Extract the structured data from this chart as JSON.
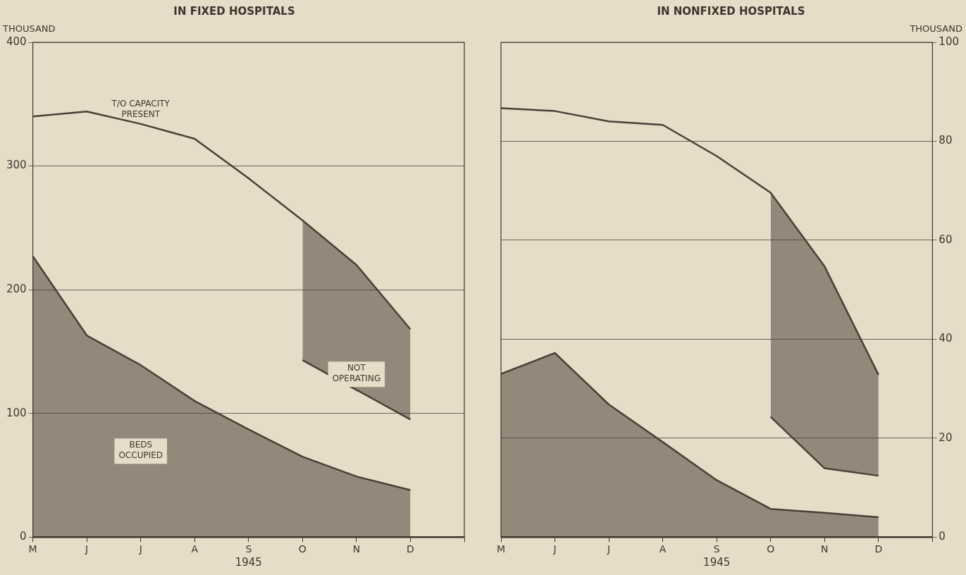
{
  "chart_data": [
    {
      "type": "area",
      "title": "IN FIXED HOSPITALS",
      "xlabel": "1945",
      "ylabel": "THOUSAND",
      "categories": [
        "M",
        "J",
        "J",
        "A",
        "S",
        "O",
        "N",
        "D",
        null
      ],
      "ylim": [
        0,
        400
      ],
      "yticks": [
        0,
        100,
        200,
        300,
        400
      ],
      "grid": "y",
      "legend": false,
      "marker": "none",
      "series": [
        {
          "name": "T/O CAPACITY PRESENT",
          "type": "line",
          "color": "#4a4038",
          "values": [
            340,
            344,
            334,
            322,
            290,
            256,
            220,
            168,
            null
          ]
        },
        {
          "name": "BEDS OCCUPIED",
          "color": "#4a4038",
          "values": [
            227,
            163,
            139,
            110,
            87,
            65,
            49,
            38,
            null
          ]
        },
        {
          "name": "NOT OPERATING",
          "type": "line",
          "color": "#4a4038",
          "values": [
            null,
            null,
            null,
            null,
            null,
            143,
            119,
            95,
            null
          ],
          "lower": [
            null,
            null,
            null,
            null,
            null,
            143,
            119,
            95,
            null
          ],
          "upper": [
            null,
            null,
            null,
            null,
            null,
            256,
            220,
            168,
            null
          ]
        }
      ]
    },
    {
      "type": "area",
      "title": "IN NONFIXED HOSPITALS",
      "xlabel": "1945",
      "y2label": "THOUSAND",
      "categories": [
        "M",
        "J",
        "J",
        "A",
        "S",
        "O",
        "N",
        "D",
        null
      ],
      "y2lim": [
        0,
        100
      ],
      "y2ticks": [
        0,
        20,
        40,
        60,
        80,
        100
      ],
      "grid": "y",
      "legend": false,
      "marker": "none",
      "series": [
        {
          "type": "line",
          "axis": "y2",
          "color": "#4a4038",
          "values": [
            86.7,
            86.1,
            84,
            83.3,
            77,
            69.6,
            54.7,
            32.8,
            null
          ]
        },
        {
          "axis": "y2",
          "color": "#4a4038",
          "values": [
            33,
            37.2,
            26.8,
            19.2,
            11.5,
            5.7,
            4.9,
            4,
            null
          ]
        },
        {
          "type": "line",
          "axis": "y2",
          "color": "#4a4038",
          "values": [
            null,
            null,
            null,
            null,
            null,
            24.3,
            13.9,
            12.4,
            null
          ],
          "lower": [
            null,
            null,
            null,
            null,
            null,
            24.3,
            13.9,
            12.4,
            null
          ],
          "upper": [
            null,
            null,
            null,
            null,
            null,
            69.6,
            54.7,
            32.8,
            null
          ]
        }
      ]
    }
  ]
}
